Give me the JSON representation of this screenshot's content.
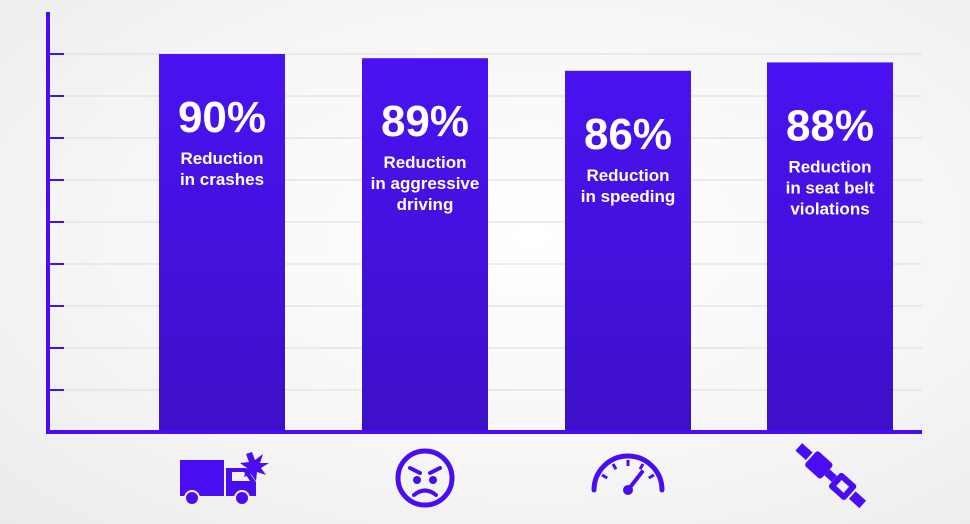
{
  "colors": {
    "bar_top": "#4a12f2",
    "bar_bottom": "#3d10c8",
    "axis": "#4a0df2",
    "grid": "#dcdcdc",
    "text": "#ffffff"
  },
  "chart_data": {
    "type": "bar",
    "ylim": [
      0,
      100
    ],
    "grid": true,
    "categories": [
      {
        "value": 90,
        "value_label": "90%",
        "caption_lines": [
          "Reduction",
          "in crashes"
        ],
        "icon": "truck-crash-icon"
      },
      {
        "value": 89,
        "value_label": "89%",
        "caption_lines": [
          "Reduction",
          "in aggressive",
          "driving"
        ],
        "icon": "angry-face-icon"
      },
      {
        "value": 86,
        "value_label": "86%",
        "caption_lines": [
          "Reduction",
          "in speeding"
        ],
        "icon": "speedometer-icon"
      },
      {
        "value": 88,
        "value_label": "88%",
        "caption_lines": [
          "Reduction",
          "in seat belt",
          "violations"
        ],
        "icon": "seat-belt-icon"
      }
    ]
  }
}
